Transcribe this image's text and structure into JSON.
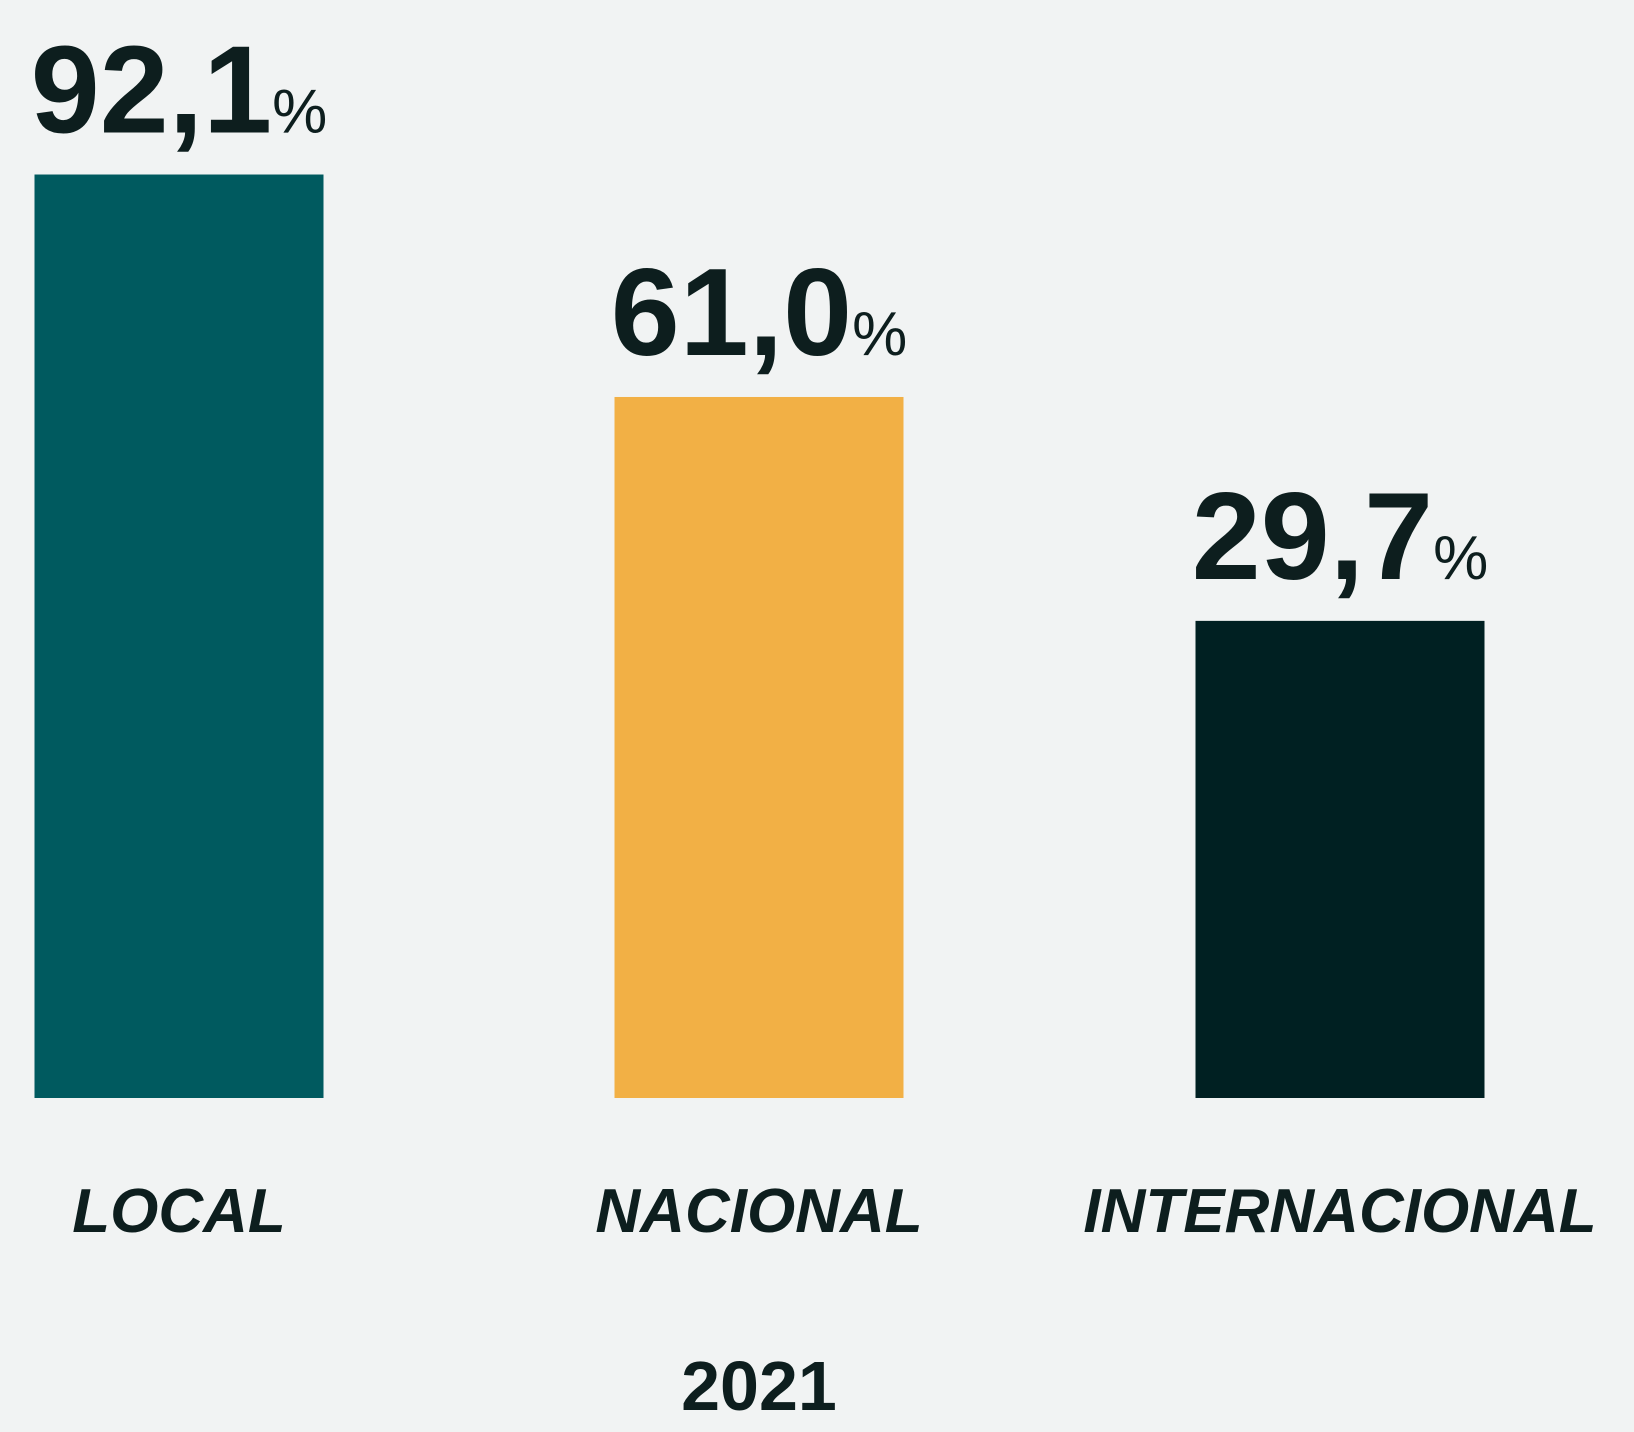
{
  "chart_data": {
    "type": "bar",
    "subtitle": "2021",
    "categories": [
      "LOCAL",
      "NACIONAL",
      "INTERNACIONAL"
    ],
    "values": [
      92.1,
      61.0,
      29.7
    ],
    "value_labels": [
      "92,1%",
      "61,0%",
      "29,7%"
    ],
    "colors": [
      "#005a5f",
      "#f2b045",
      "#002022"
    ],
    "ylim": [
      -37,
      100
    ],
    "grid": false
  }
}
